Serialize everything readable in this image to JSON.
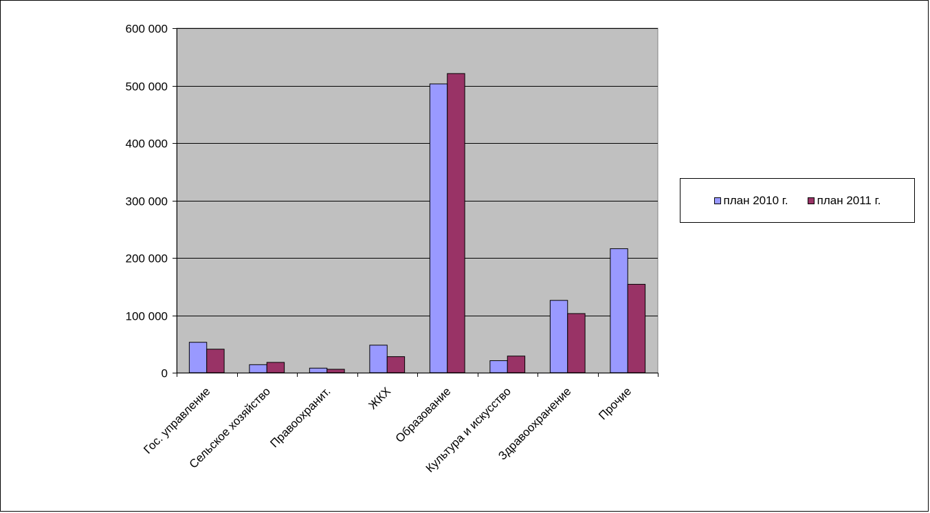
{
  "chart_data": {
    "type": "bar",
    "title": "",
    "xlabel": "",
    "ylabel": "",
    "categories": [
      "Гос. управление",
      "Сельское хозяйство",
      "Правоохранит.",
      "ЖКХ",
      "Образование",
      "Культура и искусство",
      "Здравоохранение",
      "Прочие"
    ],
    "series": [
      {
        "name": "план 2010 г.",
        "color": "#9999ff",
        "values": [
          53000,
          14000,
          8000,
          48000,
          503000,
          21000,
          126000,
          216000
        ]
      },
      {
        "name": "план 2011 г.",
        "color": "#993366",
        "values": [
          41000,
          18000,
          6000,
          28000,
          521000,
          29000,
          103000,
          154000
        ]
      }
    ],
    "ylim": [
      0,
      600000
    ],
    "yticks": [
      0,
      100000,
      200000,
      300000,
      400000,
      500000,
      600000
    ],
    "ytick_labels": [
      "0",
      "100 000",
      "200 000",
      "300 000",
      "400 000",
      "500 000",
      "600 000"
    ],
    "grid": true,
    "plot_background": "#c0c0c0",
    "legend_position": "right"
  }
}
